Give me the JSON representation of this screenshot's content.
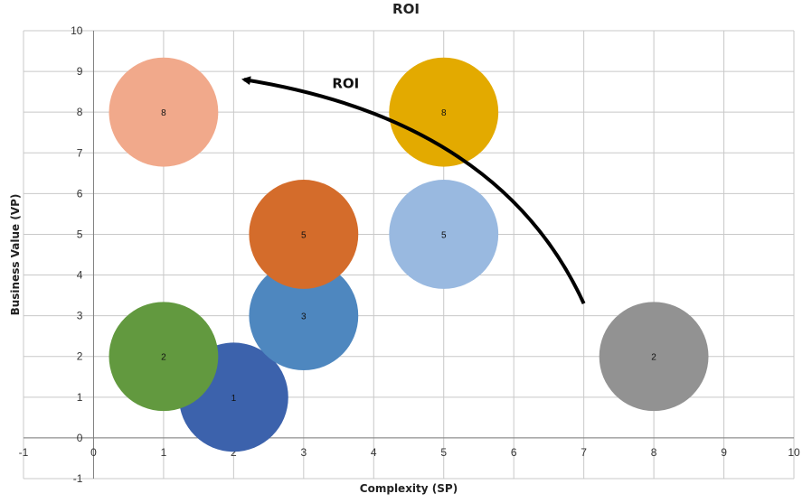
{
  "chart_data": {
    "type": "bubble",
    "title": "ROI",
    "xlabel": "Complexity (SP)",
    "ylabel": "Business Value (VP)",
    "xlim": [
      -1,
      10
    ],
    "ylim": [
      -1,
      10
    ],
    "xticks": [
      -1,
      0,
      1,
      2,
      3,
      4,
      5,
      6,
      7,
      8,
      9,
      10
    ],
    "yticks": [
      -1,
      0,
      1,
      2,
      3,
      4,
      5,
      6,
      7,
      8,
      9,
      10
    ],
    "grid": true,
    "legend": "none",
    "points": [
      {
        "x": 2,
        "y": 1,
        "label": "1",
        "color": "#3c62ac"
      },
      {
        "x": 1,
        "y": 2,
        "label": "2",
        "color": "#62993f"
      },
      {
        "x": 3,
        "y": 3,
        "label": "3",
        "color": "#4e87bf"
      },
      {
        "x": 3,
        "y": 5,
        "label": "5",
        "color": "#d46c2b"
      },
      {
        "x": 5,
        "y": 5,
        "label": "5",
        "color": "#99b9e0"
      },
      {
        "x": 1,
        "y": 8,
        "label": "8",
        "color": "#f1a98b"
      },
      {
        "x": 5,
        "y": 8,
        "label": "8",
        "color": "#e3aa00"
      },
      {
        "x": 8,
        "y": 2,
        "label": "2",
        "color": "#929292"
      }
    ],
    "bubble_radius_data": 0.78,
    "annotation": {
      "text": "ROI",
      "arrow_from": [
        7,
        3.3
      ],
      "arrow_control": [
        5.8,
        7.8
      ],
      "arrow_to": [
        2.15,
        8.8
      ],
      "text_at": [
        3.6,
        8.7
      ]
    }
  }
}
